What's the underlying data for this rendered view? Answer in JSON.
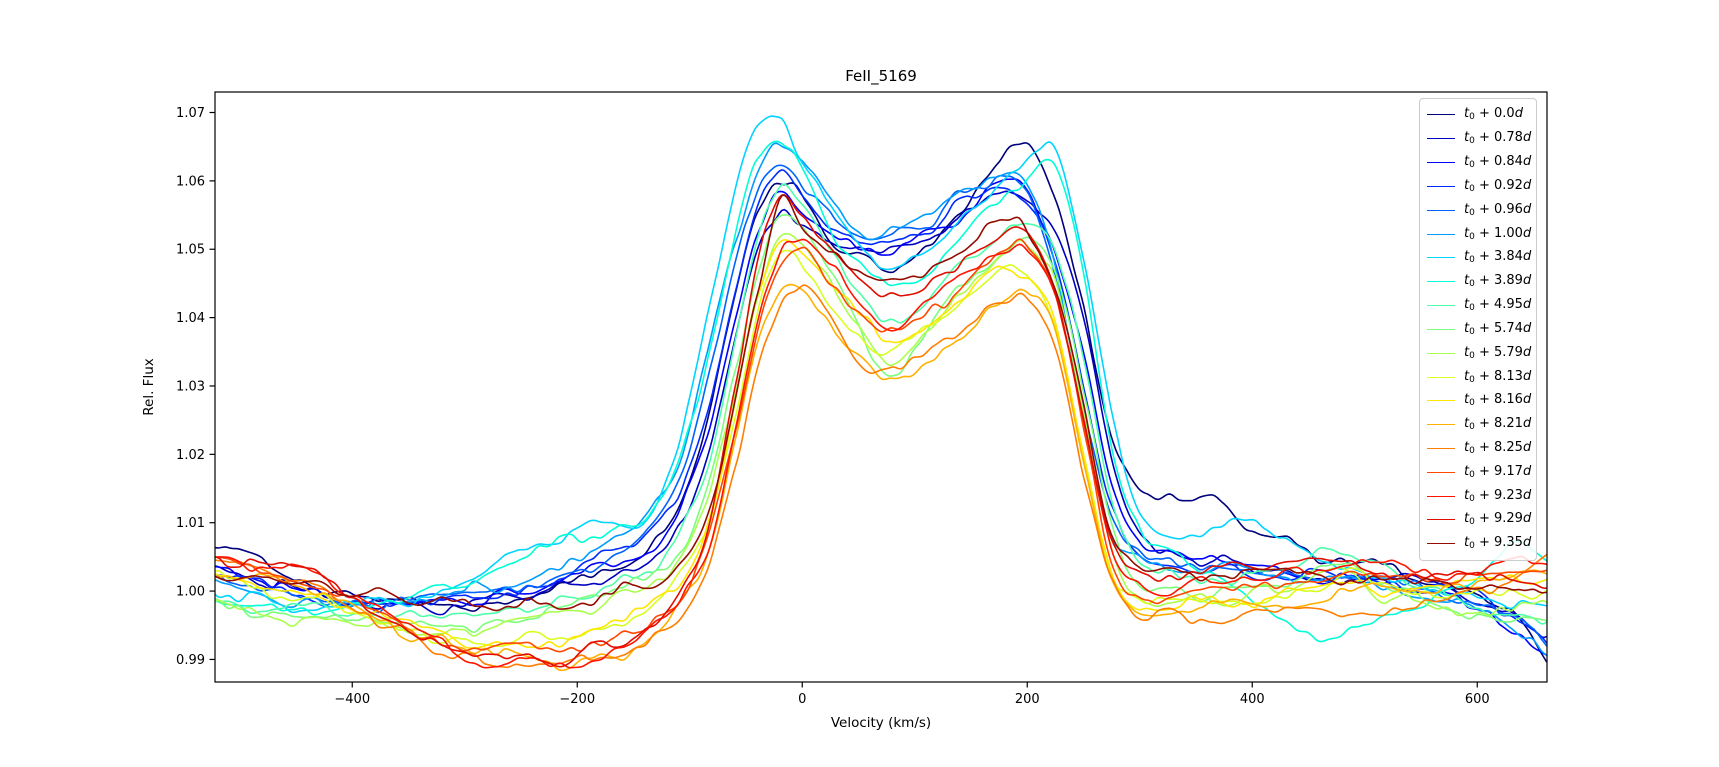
{
  "figure": {
    "title": "FeII_5169",
    "xlabel": "Velocity (km/s)",
    "ylabel": "Rel. Flux",
    "background": "#ffffff"
  },
  "axes": {
    "xlim": [
      -522,
      662
    ],
    "ylim": [
      0.9867,
      1.073
    ],
    "xticks": [
      -400,
      -200,
      0,
      200,
      400,
      600
    ],
    "xtick_labels": [
      "−400",
      "−200",
      "0",
      "200",
      "400",
      "600"
    ],
    "yticks": [
      0.99,
      1.0,
      1.01,
      1.02,
      1.03,
      1.04,
      1.05,
      1.06,
      1.07
    ],
    "ytick_labels": [
      "0.99",
      "1.00",
      "1.01",
      "1.02",
      "1.03",
      "1.04",
      "1.05",
      "1.06",
      "1.07"
    ],
    "grid": false,
    "spine_color": "#000000",
    "tick_color": "#000000"
  },
  "legend": {
    "position": "upper right",
    "border_color": "#cccccc",
    "background": "rgba(255,255,255,0.85)"
  },
  "chart_data": {
    "type": "line",
    "title": "FeII_5169",
    "xlabel": "Velocity (km/s)",
    "ylabel": "Rel. Flux",
    "xlim": [
      -522,
      662
    ],
    "ylim": [
      0.9867,
      1.073
    ],
    "grid": false,
    "legend_position": "upper right",
    "line_width": 1.6,
    "noise_amplitude": 0.0011,
    "x_anchors": [
      -522,
      -480,
      -440,
      -400,
      -360,
      -320,
      -280,
      -240,
      -200,
      -170,
      -140,
      -110,
      -85,
      -60,
      -40,
      -20,
      0,
      25,
      50,
      75,
      100,
      125,
      150,
      175,
      200,
      225,
      250,
      275,
      300,
      330,
      365,
      400,
      440,
      480,
      520,
      560,
      600,
      635,
      662
    ],
    "series": [
      {
        "label": "t0 + 0.0d",
        "color": "#00007f",
        "values": [
          1.0065,
          1.0035,
          1.0005,
          0.9985,
          0.998,
          0.9975,
          0.998,
          0.9995,
          1.001,
          1.0025,
          1.005,
          1.012,
          1.024,
          1.043,
          1.056,
          1.0605,
          1.0585,
          1.052,
          1.049,
          1.0475,
          1.049,
          1.0535,
          1.058,
          1.0625,
          1.0645,
          1.058,
          1.042,
          1.024,
          1.0145,
          1.0135,
          1.0145,
          1.008,
          1.0065,
          1.0045,
          1.003,
          1.0005,
          0.9995,
          0.997,
          0.9895
        ]
      },
      {
        "label": "t0 + 0.78d",
        "color": "#0000c0",
        "values": [
          1.004,
          1.0015,
          0.9995,
          0.9985,
          0.998,
          0.998,
          0.9985,
          0.9995,
          1.001,
          1.0025,
          1.0045,
          1.01,
          1.02,
          1.036,
          1.05,
          1.056,
          1.053,
          1.0505,
          1.049,
          1.0495,
          1.051,
          1.0525,
          1.055,
          1.058,
          1.0565,
          1.0525,
          1.04,
          1.02,
          1.009,
          1.0055,
          1.0045,
          1.0035,
          1.0025,
          1.002,
          1.0015,
          1.0005,
          0.9985,
          0.996,
          0.9935
        ]
      },
      {
        "label": "t0 + 0.84d",
        "color": "#0000ff",
        "values": [
          1.003,
          1.001,
          0.9995,
          0.998,
          0.9975,
          0.998,
          0.999,
          1.0,
          1.002,
          1.0035,
          1.006,
          1.012,
          1.023,
          1.04,
          1.053,
          1.059,
          1.0565,
          1.0525,
          1.0505,
          1.05,
          1.0515,
          1.0535,
          1.056,
          1.0595,
          1.058,
          1.05,
          1.035,
          1.016,
          1.0075,
          1.005,
          1.004,
          1.003,
          1.0025,
          1.002,
          1.001,
          1.0,
          0.998,
          0.9945,
          0.991
        ]
      },
      {
        "label": "t0 + 0.92d",
        "color": "#002bff",
        "values": [
          1.0025,
          1.0005,
          0.999,
          0.998,
          0.998,
          0.9985,
          0.9995,
          1.001,
          1.003,
          1.005,
          1.0075,
          1.014,
          1.026,
          1.043,
          1.056,
          1.0615,
          1.0585,
          1.054,
          1.0515,
          1.0505,
          1.052,
          1.0545,
          1.0575,
          1.06,
          1.0575,
          1.048,
          1.03,
          1.013,
          1.006,
          1.0045,
          1.0035,
          1.003,
          1.0025,
          1.002,
          1.0015,
          1.0005,
          0.999,
          0.9955,
          0.9925
        ]
      },
      {
        "label": "t0 + 0.96d",
        "color": "#0063ff",
        "values": [
          1.002,
          1.0,
          0.9985,
          0.998,
          0.998,
          0.999,
          1.0,
          1.0015,
          1.0035,
          1.0055,
          1.009,
          1.017,
          1.03,
          1.047,
          1.0585,
          1.063,
          1.06,
          1.055,
          1.052,
          1.0515,
          1.053,
          1.0555,
          1.0585,
          1.0605,
          1.058,
          1.046,
          1.026,
          1.01,
          1.005,
          1.004,
          1.0035,
          1.003,
          1.002,
          1.0015,
          1.001,
          1.0,
          0.998,
          0.995,
          0.992
        ]
      },
      {
        "label": "t0 + 1.00d",
        "color": "#009cff",
        "values": [
          1.0015,
          1.0,
          0.998,
          0.9975,
          0.998,
          0.999,
          1.0005,
          1.002,
          1.0045,
          1.0065,
          1.01,
          1.019,
          1.034,
          1.051,
          1.0615,
          1.0655,
          1.0625,
          1.0565,
          1.053,
          1.052,
          1.0535,
          1.056,
          1.059,
          1.0615,
          1.0595,
          1.047,
          1.025,
          1.009,
          1.0045,
          1.0035,
          1.003,
          1.0025,
          1.002,
          1.0015,
          1.001,
          0.9995,
          0.997,
          0.9935,
          0.9905
        ]
      },
      {
        "label": "t0 + 3.84d",
        "color": "#00d4ff",
        "values": [
          1.0,
          0.9985,
          0.998,
          0.998,
          0.999,
          1.0005,
          1.003,
          1.006,
          1.0085,
          1.0095,
          1.01,
          1.022,
          1.04,
          1.058,
          1.0675,
          1.0685,
          1.0625,
          1.056,
          1.051,
          1.0475,
          1.049,
          1.052,
          1.0555,
          1.059,
          1.0625,
          1.0635,
          1.049,
          1.026,
          1.012,
          1.008,
          1.0085,
          1.0095,
          1.007,
          1.004,
          1.0015,
          1.0,
          0.999,
          0.9975,
          0.997
        ]
      },
      {
        "label": "t0 + 3.89d",
        "color": "#00ffd7",
        "values": [
          0.999,
          0.998,
          0.9975,
          0.998,
          0.999,
          1.0005,
          1.0025,
          1.0055,
          1.008,
          1.009,
          1.0095,
          1.018,
          1.033,
          1.052,
          1.063,
          1.066,
          1.0615,
          1.0535,
          1.048,
          1.0445,
          1.046,
          1.0495,
          1.0535,
          1.057,
          1.06,
          1.0615,
          1.046,
          1.022,
          1.009,
          1.005,
          1.002,
          0.999,
          0.995,
          0.9935,
          0.996,
          0.998,
          1.002,
          1.0065,
          1.0045
        ]
      },
      {
        "label": "t0 + 4.95d",
        "color": "#4effa9",
        "values": [
          0.9985,
          0.9975,
          0.997,
          0.9965,
          0.996,
          0.9965,
          0.997,
          0.998,
          0.9995,
          1.001,
          1.003,
          1.008,
          1.018,
          1.036,
          1.051,
          1.0585,
          1.056,
          1.05,
          1.043,
          1.039,
          1.041,
          1.045,
          1.049,
          1.0525,
          1.0545,
          1.05,
          1.034,
          1.013,
          1.0045,
          1.002,
          1.0015,
          1.002,
          1.0035,
          1.006,
          1.003,
          1.0,
          0.998,
          0.9965,
          0.9955
        ]
      },
      {
        "label": "t0 + 5.74d",
        "color": "#7bff7b",
        "values": [
          0.998,
          0.997,
          0.996,
          0.9955,
          0.995,
          0.9945,
          0.995,
          0.9965,
          0.998,
          0.9995,
          1.0015,
          1.006,
          1.015,
          1.032,
          1.047,
          1.0555,
          1.0535,
          1.046,
          1.039,
          1.0315,
          1.0345,
          1.0405,
          1.0455,
          1.049,
          1.0515,
          1.048,
          1.03,
          1.009,
          1.0015,
          1.0,
          0.9995,
          1.0,
          1.0015,
          1.004,
          1.0005,
          0.998,
          0.9965,
          0.996,
          0.9955
        ]
      },
      {
        "label": "t0 + 5.79d",
        "color": "#a9ff4e",
        "values": [
          0.9975,
          0.9965,
          0.9955,
          0.995,
          0.9945,
          0.994,
          0.9945,
          0.996,
          0.9975,
          0.999,
          1.001,
          1.005,
          1.013,
          1.029,
          1.0435,
          1.052,
          1.0505,
          1.0445,
          1.0375,
          1.0325,
          1.036,
          1.0405,
          1.0445,
          1.048,
          1.05,
          1.046,
          1.026,
          1.006,
          0.9995,
          0.999,
          0.999,
          0.9995,
          1.001,
          1.0025,
          0.9995,
          0.998,
          0.9975,
          0.998,
          0.998
        ]
      },
      {
        "label": "t0 + 8.13d",
        "color": "#d7ff20",
        "values": [
          1.002,
          1.0005,
          0.999,
          0.997,
          0.995,
          0.9935,
          0.9925,
          0.993,
          0.994,
          0.9955,
          0.9975,
          1.002,
          1.01,
          1.026,
          1.041,
          1.0495,
          1.048,
          1.0425,
          1.038,
          1.0345,
          1.0375,
          1.0405,
          1.044,
          1.047,
          1.0455,
          1.0385,
          1.02,
          1.0025,
          0.998,
          0.998,
          0.9985,
          0.999,
          1.0005,
          1.002,
          1.0005,
          0.9995,
          0.999,
          0.9995,
          1.0
        ]
      },
      {
        "label": "t0 + 8.16d",
        "color": "#ffe600",
        "values": [
          1.003,
          1.0015,
          1.0,
          0.998,
          0.9955,
          0.9935,
          0.992,
          0.9925,
          0.9935,
          0.995,
          0.997,
          1.0015,
          1.01,
          1.027,
          1.0425,
          1.051,
          1.0495,
          1.0445,
          1.04,
          1.0365,
          1.0375,
          1.041,
          1.0445,
          1.047,
          1.0455,
          1.038,
          1.019,
          1.002,
          0.998,
          0.998,
          0.9985,
          0.999,
          1.0,
          1.0015,
          1.0005,
          1.0,
          1.0005,
          1.001,
          1.0015
        ]
      },
      {
        "label": "t0 + 8.21d",
        "color": "#ffb100",
        "values": [
          1.0035,
          1.002,
          1.0005,
          0.998,
          0.995,
          0.9925,
          0.9905,
          0.99,
          0.9895,
          0.9905,
          0.9925,
          0.997,
          1.005,
          1.021,
          1.036,
          1.0445,
          1.0435,
          1.039,
          1.034,
          1.0305,
          1.0315,
          1.0345,
          1.038,
          1.0415,
          1.0435,
          1.0375,
          1.02,
          1.002,
          0.9975,
          0.997,
          0.9975,
          0.998,
          0.9985,
          0.9995,
          1.0,
          1.0005,
          1.001,
          1.0015,
          1.002
        ]
      },
      {
        "label": "t0 + 8.25d",
        "color": "#ff7d00",
        "values": [
          1.0045,
          1.003,
          1.001,
          0.998,
          0.9945,
          0.9915,
          0.9895,
          0.989,
          0.9895,
          0.99,
          0.9915,
          0.9955,
          1.003,
          1.018,
          1.033,
          1.0425,
          1.0445,
          1.041,
          1.034,
          1.0315,
          1.033,
          1.036,
          1.039,
          1.0415,
          1.0435,
          1.036,
          1.018,
          1.0015,
          0.997,
          0.9965,
          0.996,
          0.9965,
          0.997,
          0.9965,
          0.997,
          0.998,
          0.9995,
          1.003,
          1.0065
        ]
      },
      {
        "label": "t0 + 9.17d",
        "color": "#ff4800",
        "values": [
          1.0045,
          1.0035,
          1.002,
          0.9995,
          0.996,
          0.993,
          0.9915,
          0.9915,
          0.992,
          0.993,
          0.9945,
          0.999,
          1.007,
          1.023,
          1.038,
          1.0475,
          1.049,
          1.0455,
          1.041,
          1.038,
          1.039,
          1.042,
          1.0455,
          1.0485,
          1.05,
          1.043,
          1.024,
          1.005,
          0.9995,
          0.9995,
          1.0005,
          1.001,
          1.0015,
          1.002,
          1.0025,
          1.002,
          1.0025,
          1.003,
          1.003
        ]
      },
      {
        "label": "t0 + 9.23d",
        "color": "#ff1400",
        "values": [
          1.005,
          1.004,
          1.0025,
          1.0,
          0.9965,
          0.9925,
          0.99,
          0.9895,
          0.99,
          0.9915,
          0.9935,
          0.998,
          1.006,
          1.023,
          1.039,
          1.049,
          1.0505,
          1.047,
          1.0425,
          1.0395,
          1.0405,
          1.0435,
          1.047,
          1.0495,
          1.0505,
          1.0435,
          1.025,
          1.006,
          1.0005,
          1.0005,
          1.0015,
          1.002,
          1.0025,
          1.003,
          1.0035,
          1.003,
          1.0035,
          1.004,
          1.0035
        ]
      },
      {
        "label": "t0 + 9.29d",
        "color": "#e10e00",
        "values": [
          1.0045,
          1.0035,
          1.002,
          0.9995,
          0.996,
          0.9925,
          0.9905,
          0.99,
          0.9905,
          0.992,
          0.994,
          0.999,
          1.008,
          1.03,
          1.048,
          1.058,
          1.0555,
          1.05,
          1.046,
          1.0425,
          1.0435,
          1.0465,
          1.0495,
          1.052,
          1.0515,
          1.044,
          1.026,
          1.008,
          1.0025,
          1.0025,
          1.003,
          1.0035,
          1.0035,
          1.0035,
          1.003,
          1.0025,
          1.002,
          1.0015,
          1.001
        ]
      },
      {
        "label": "t0 + 9.35d",
        "color": "#940c00",
        "values": [
          1.002,
          1.0015,
          1.001,
          1.0,
          0.999,
          0.998,
          0.9975,
          0.998,
          0.9985,
          0.9995,
          1.001,
          1.004,
          1.011,
          1.027,
          1.043,
          1.058,
          1.0545,
          1.0495,
          1.046,
          1.0445,
          1.0455,
          1.0485,
          1.0515,
          1.054,
          1.0525,
          1.0445,
          1.027,
          1.009,
          1.0035,
          1.003,
          1.0025,
          1.0025,
          1.002,
          1.0015,
          1.0015,
          1.001,
          1.0005,
          1.0,
          1.0005
        ]
      }
    ]
  }
}
